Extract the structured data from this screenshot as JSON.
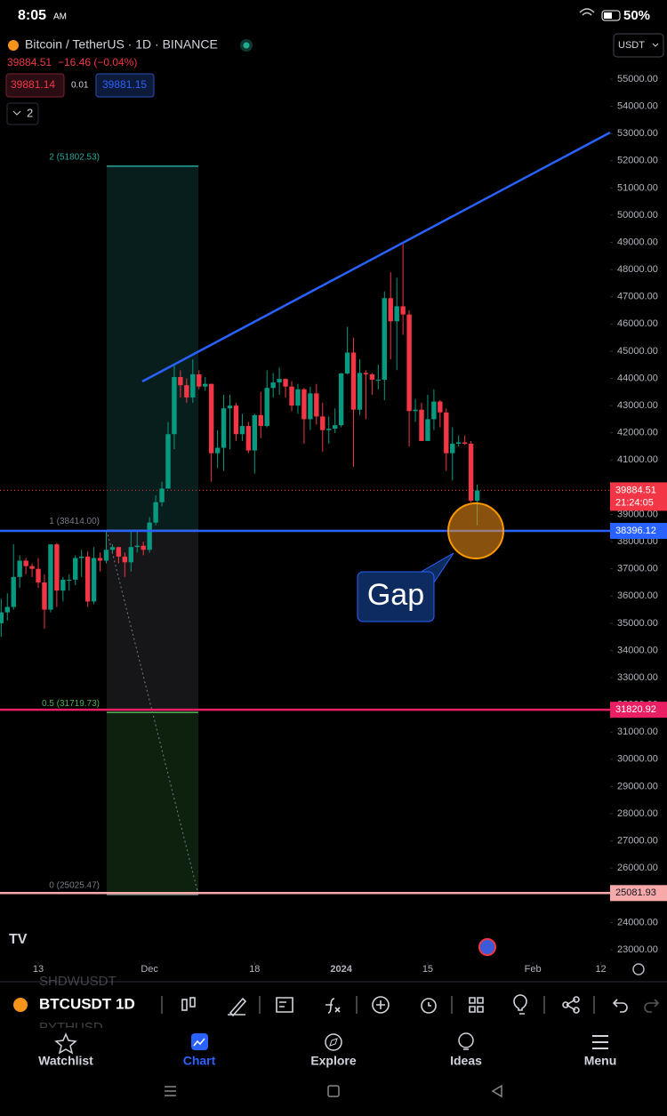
{
  "status_bar": {
    "time": "8:05",
    "ampm": "AM",
    "battery": "50%"
  },
  "header": {
    "symbol": "Bitcoin / TetherUS · 1D · BINANCE",
    "currency": "USDT",
    "change": "−16.46 (−0.04%)",
    "bid": "39881.14",
    "spread": "0.01",
    "ask": "39881.15",
    "indicators": "2"
  },
  "chart_data": {
    "type": "candlestick",
    "open": [
      35000,
      35400,
      35600,
      36700,
      37300,
      37100,
      37000,
      36500,
      35500,
      37900,
      36200,
      36600,
      36600,
      37400,
      37450,
      35800,
      37400,
      37300,
      37700,
      37800,
      37450,
      37240,
      37800,
      37850,
      37700,
      38700,
      39450,
      39950,
      41950,
      44050,
      43750,
      43300,
      44150,
      43700,
      43800,
      41250,
      41450,
      42900,
      43000,
      41950,
      42250,
      41350,
      42650,
      42250,
      43650,
      43850,
      43980,
      43700,
      43000,
      43600,
      42500,
      43450,
      42600,
      42100,
      42150,
      42280,
      44180,
      44950,
      42850,
      44200,
      44150,
      43950,
      43950,
      46950,
      46100,
      46650,
      46350,
      42800,
      42850,
      41700,
      42500,
      43150,
      42750,
      41250,
      41600,
      41650,
      41600,
      39500
    ],
    "high": [
      35900,
      36100,
      37900,
      37500,
      37400,
      37200,
      37400,
      36800,
      37900,
      37950,
      36700,
      36800,
      37500,
      37700,
      37650,
      37800,
      37600,
      38400,
      37900,
      37800,
      37600,
      38400,
      38400,
      38000,
      38900,
      39700,
      40200,
      42400,
      44500,
      44300,
      44000,
      44700,
      44300,
      44050,
      43800,
      42100,
      43400,
      43400,
      43100,
      42700,
      42400,
      42700,
      43500,
      44300,
      44200,
      44400,
      44000,
      43900,
      43800,
      43650,
      43700,
      43800,
      43100,
      42600,
      42900,
      44200,
      45900,
      45500,
      44700,
      44300,
      44200,
      44500,
      47200,
      47900,
      47700,
      48950,
      46500,
      43250,
      43100,
      43400,
      43600,
      43200,
      42900,
      42200,
      41900,
      41900,
      41700,
      40100
    ],
    "low": [
      34500,
      35100,
      35500,
      36300,
      36800,
      36700,
      36300,
      34800,
      35400,
      35600,
      35800,
      36200,
      36400,
      36700,
      35600,
      35700,
      36900,
      37200,
      37600,
      37200,
      36700,
      36900,
      37600,
      37500,
      37600,
      38600,
      39300,
      39950,
      41400,
      43300,
      43100,
      43100,
      43600,
      43550,
      40200,
      40700,
      40600,
      41400,
      41700,
      41700,
      41250,
      40500,
      41800,
      42200,
      43300,
      43400,
      43300,
      42800,
      42700,
      41600,
      42100,
      42300,
      41300,
      41600,
      42000,
      42200,
      44150,
      40750,
      42650,
      42500,
      43400,
      43600,
      43200,
      44700,
      44300,
      45600,
      41500,
      42400,
      41700,
      41700,
      42100,
      42200,
      40600,
      40250,
      41500,
      41550,
      39450,
      38600
    ],
    "close": [
      35400,
      35600,
      36700,
      37300,
      37100,
      37000,
      36500,
      35500,
      37900,
      36200,
      36600,
      36600,
      37400,
      37450,
      35800,
      37400,
      37300,
      37700,
      37800,
      37450,
      37240,
      37800,
      37850,
      37700,
      38700,
      39450,
      39950,
      41950,
      44050,
      43750,
      43300,
      44150,
      43700,
      43800,
      41250,
      41450,
      42900,
      43000,
      41950,
      42250,
      41350,
      42650,
      42250,
      43650,
      43850,
      43980,
      43700,
      43000,
      43600,
      42500,
      43450,
      42600,
      42100,
      42150,
      42280,
      44180,
      44950,
      42850,
      44200,
      44150,
      43950,
      43950,
      46950,
      46100,
      46650,
      46350,
      42800,
      42850,
      41700,
      42500,
      43150,
      42750,
      41250,
      41600,
      41650,
      41600,
      39500,
      39884.51
    ],
    "up_color": "#089981",
    "down_color": "#f23645",
    "countdown": "21:24:05",
    "xlim": [
      -0.19,
      98.5
    ],
    "xticks": [
      {
        "value": 6,
        "label": "13"
      },
      {
        "value": 24,
        "label": "Dec"
      },
      {
        "value": 41,
        "label": "18"
      },
      {
        "value": 55,
        "label": "2024"
      },
      {
        "value": 69,
        "label": "15"
      },
      {
        "value": 86,
        "label": "Feb"
      },
      {
        "value": 97,
        "label": "12"
      }
    ],
    "ylim": [
      22673,
      56765
    ],
    "yticks": [
      {
        "value": 23000,
        "label": "23000.00"
      },
      {
        "value": 24000,
        "label": "24000.00"
      },
      {
        "value": 25000,
        "label": "25000.00"
      },
      {
        "value": 26000,
        "label": "26000.00"
      },
      {
        "value": 27000,
        "label": "27000.00"
      },
      {
        "value": 28000,
        "label": "28000.00"
      },
      {
        "value": 29000,
        "label": "29000.00"
      },
      {
        "value": 30000,
        "label": "30000.00"
      },
      {
        "value": 31000,
        "label": "31000.00"
      },
      {
        "value": 32000,
        "label": "32000.00"
      },
      {
        "value": 33000,
        "label": "33000.00"
      },
      {
        "value": 34000,
        "label": "34000.00"
      },
      {
        "value": 35000,
        "label": "35000.00"
      },
      {
        "value": 36000,
        "label": "36000.00"
      },
      {
        "value": 37000,
        "label": "37000.00"
      },
      {
        "value": 38000,
        "label": "38000.00"
      },
      {
        "value": 39000,
        "label": "39000.00"
      },
      {
        "value": 40000,
        "label": "40000.00"
      },
      {
        "value": 41000,
        "label": "41000.00"
      },
      {
        "value": 42000,
        "label": "42000.00"
      },
      {
        "value": 43000,
        "label": "43000.00"
      },
      {
        "value": 44000,
        "label": "44000.00"
      },
      {
        "value": 45000,
        "label": "45000.00"
      },
      {
        "value": 46000,
        "label": "46000.00"
      },
      {
        "value": 47000,
        "label": "47000.00"
      },
      {
        "value": 48000,
        "label": "48000.00"
      },
      {
        "value": 49000,
        "label": "49000.00"
      },
      {
        "value": 50000,
        "label": "50000.00"
      },
      {
        "value": 51000,
        "label": "51000.00"
      },
      {
        "value": 52000,
        "label": "52000.00"
      },
      {
        "value": 53000,
        "label": "53000.00"
      },
      {
        "value": 54000,
        "label": "54000.00"
      },
      {
        "value": 55000,
        "label": "55000.00"
      }
    ],
    "price_lines": [
      {
        "value": 38396.12,
        "color": "#2962ff",
        "text_color": "#ffffff"
      },
      {
        "value": 31820.92,
        "color": "#e91e63",
        "text_color": "#ffffff"
      },
      {
        "value": 25081.93,
        "color": "#f7a8a8",
        "text_color": "#131722"
      }
    ],
    "fib_levels": [
      {
        "label": "2 (51802.53)",
        "value": 51802.53,
        "color": "#26a69a"
      },
      {
        "label": "1 (38414.00)",
        "value": 38414,
        "color": "#787b86"
      },
      {
        "label": "0.5 (31719.73)",
        "value": 31719.73,
        "color": "#4caf50"
      },
      {
        "label": "0 (25025.47)",
        "value": 25025.47,
        "color": "#787b86"
      }
    ],
    "annotation": "Gap"
  },
  "toolbar": {
    "symbol": "BTCUSDT",
    "interval": "1D",
    "ghost_above": "SHDWUSDT",
    "ghost_below": "PYTHUSD"
  },
  "nav": [
    "Watchlist",
    "Chart",
    "Explore",
    "Ideas",
    "Menu"
  ]
}
